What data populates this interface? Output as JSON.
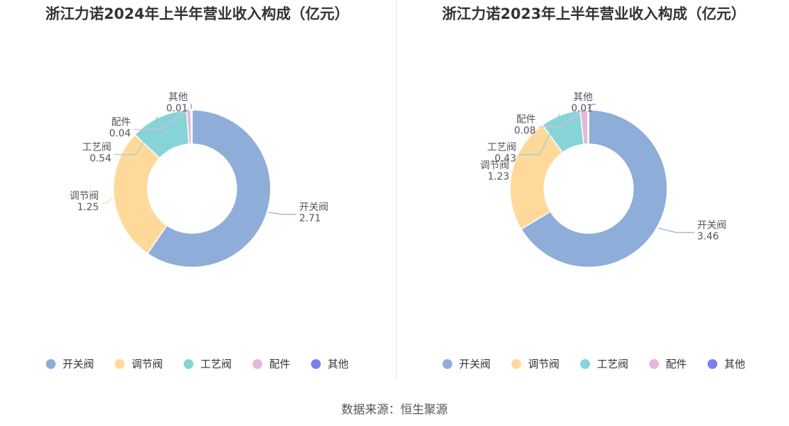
{
  "source": "数据来源：恒生聚源",
  "chart_data": [
    {
      "type": "pie",
      "title": "浙江力诺2024年上半年营业收入构成（亿元）",
      "slices": [
        {
          "name": "开关阀",
          "value": 2.71,
          "value_label": "2.71",
          "color": "#8fadd9"
        },
        {
          "name": "调节阀",
          "value": 1.25,
          "value_label": "1.25",
          "color": "#ffd99a"
        },
        {
          "name": "工艺阀",
          "value": 0.54,
          "value_label": "0.54",
          "color": "#86d4d8"
        },
        {
          "name": "配件",
          "value": 0.04,
          "value_label": "0.04",
          "color": "#e5b8db"
        },
        {
          "name": "其他",
          "value": 0.01,
          "value_label": "0.01",
          "color": "#7b7ff0"
        }
      ],
      "legend_position": "bottom"
    },
    {
      "type": "pie",
      "title": "浙江力诺2023年上半年营业收入构成（亿元）",
      "slices": [
        {
          "name": "开关阀",
          "value": 3.46,
          "value_label": "3.46",
          "color": "#8fadd9"
        },
        {
          "name": "调节阀",
          "value": 1.23,
          "value_label": "1.23",
          "color": "#ffd99a"
        },
        {
          "name": "工艺阀",
          "value": 0.43,
          "value_label": "0.43",
          "color": "#86d4d8"
        },
        {
          "name": "配件",
          "value": 0.08,
          "value_label": "0.08",
          "color": "#e5b8db"
        },
        {
          "name": "其他",
          "value": 0.01,
          "value_label": "0.01",
          "color": "#7b7ff0"
        }
      ],
      "legend_position": "bottom"
    }
  ]
}
